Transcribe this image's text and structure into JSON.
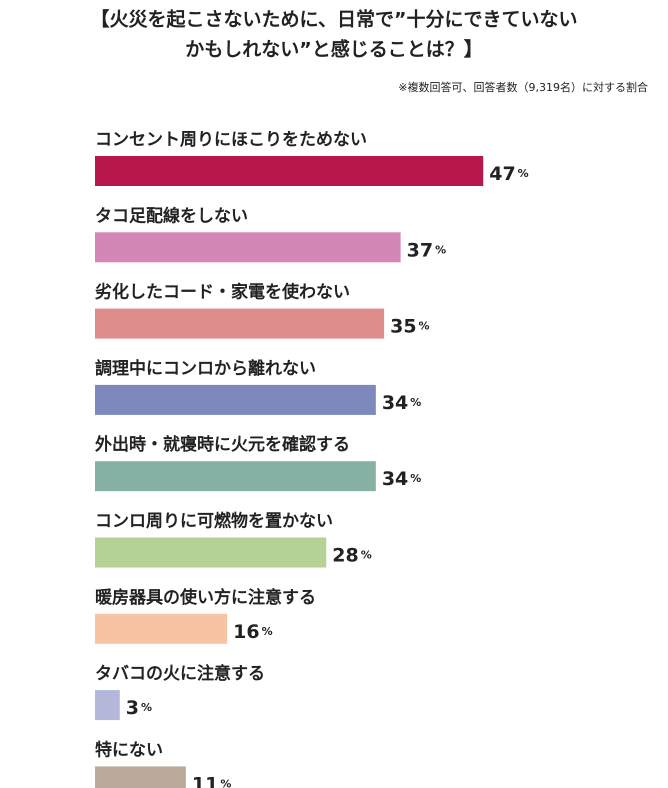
{
  "chart_data": {
    "type": "bar",
    "orientation": "horizontal",
    "title": [
      "【火災を起こさないために、日常で”十分にできていない",
      "かもしれない”と感じることは？】"
    ],
    "note": "※複数回答可、回答者数（9,319名）に対する割合",
    "categories": [
      "コンセント周りにほこりをためない",
      "タコ足配線をしない",
      "劣化したコード・家電を使わない",
      "調理中にコンロから離れない",
      "外出時・就寝時に火元を確認する",
      "コンロ周りに可燃物を置かない",
      "暖房器具の使い方に注意する",
      "タバコの火に注意する",
      "特にない"
    ],
    "values": [
      47,
      37,
      35,
      34,
      34,
      28,
      16,
      3,
      11
    ],
    "value_labels": [
      "47%",
      "37%",
      "35%",
      "34%",
      "34%",
      "28%",
      "16%",
      "3%",
      "11%"
    ],
    "colors": [
      "#b8174b",
      "#d487b6",
      "#de8c8c",
      "#7d88bc",
      "#88b1a6",
      "#b6d195",
      "#f8c3a3",
      "#b4b7d9",
      "#b9aa9c"
    ]
  }
}
